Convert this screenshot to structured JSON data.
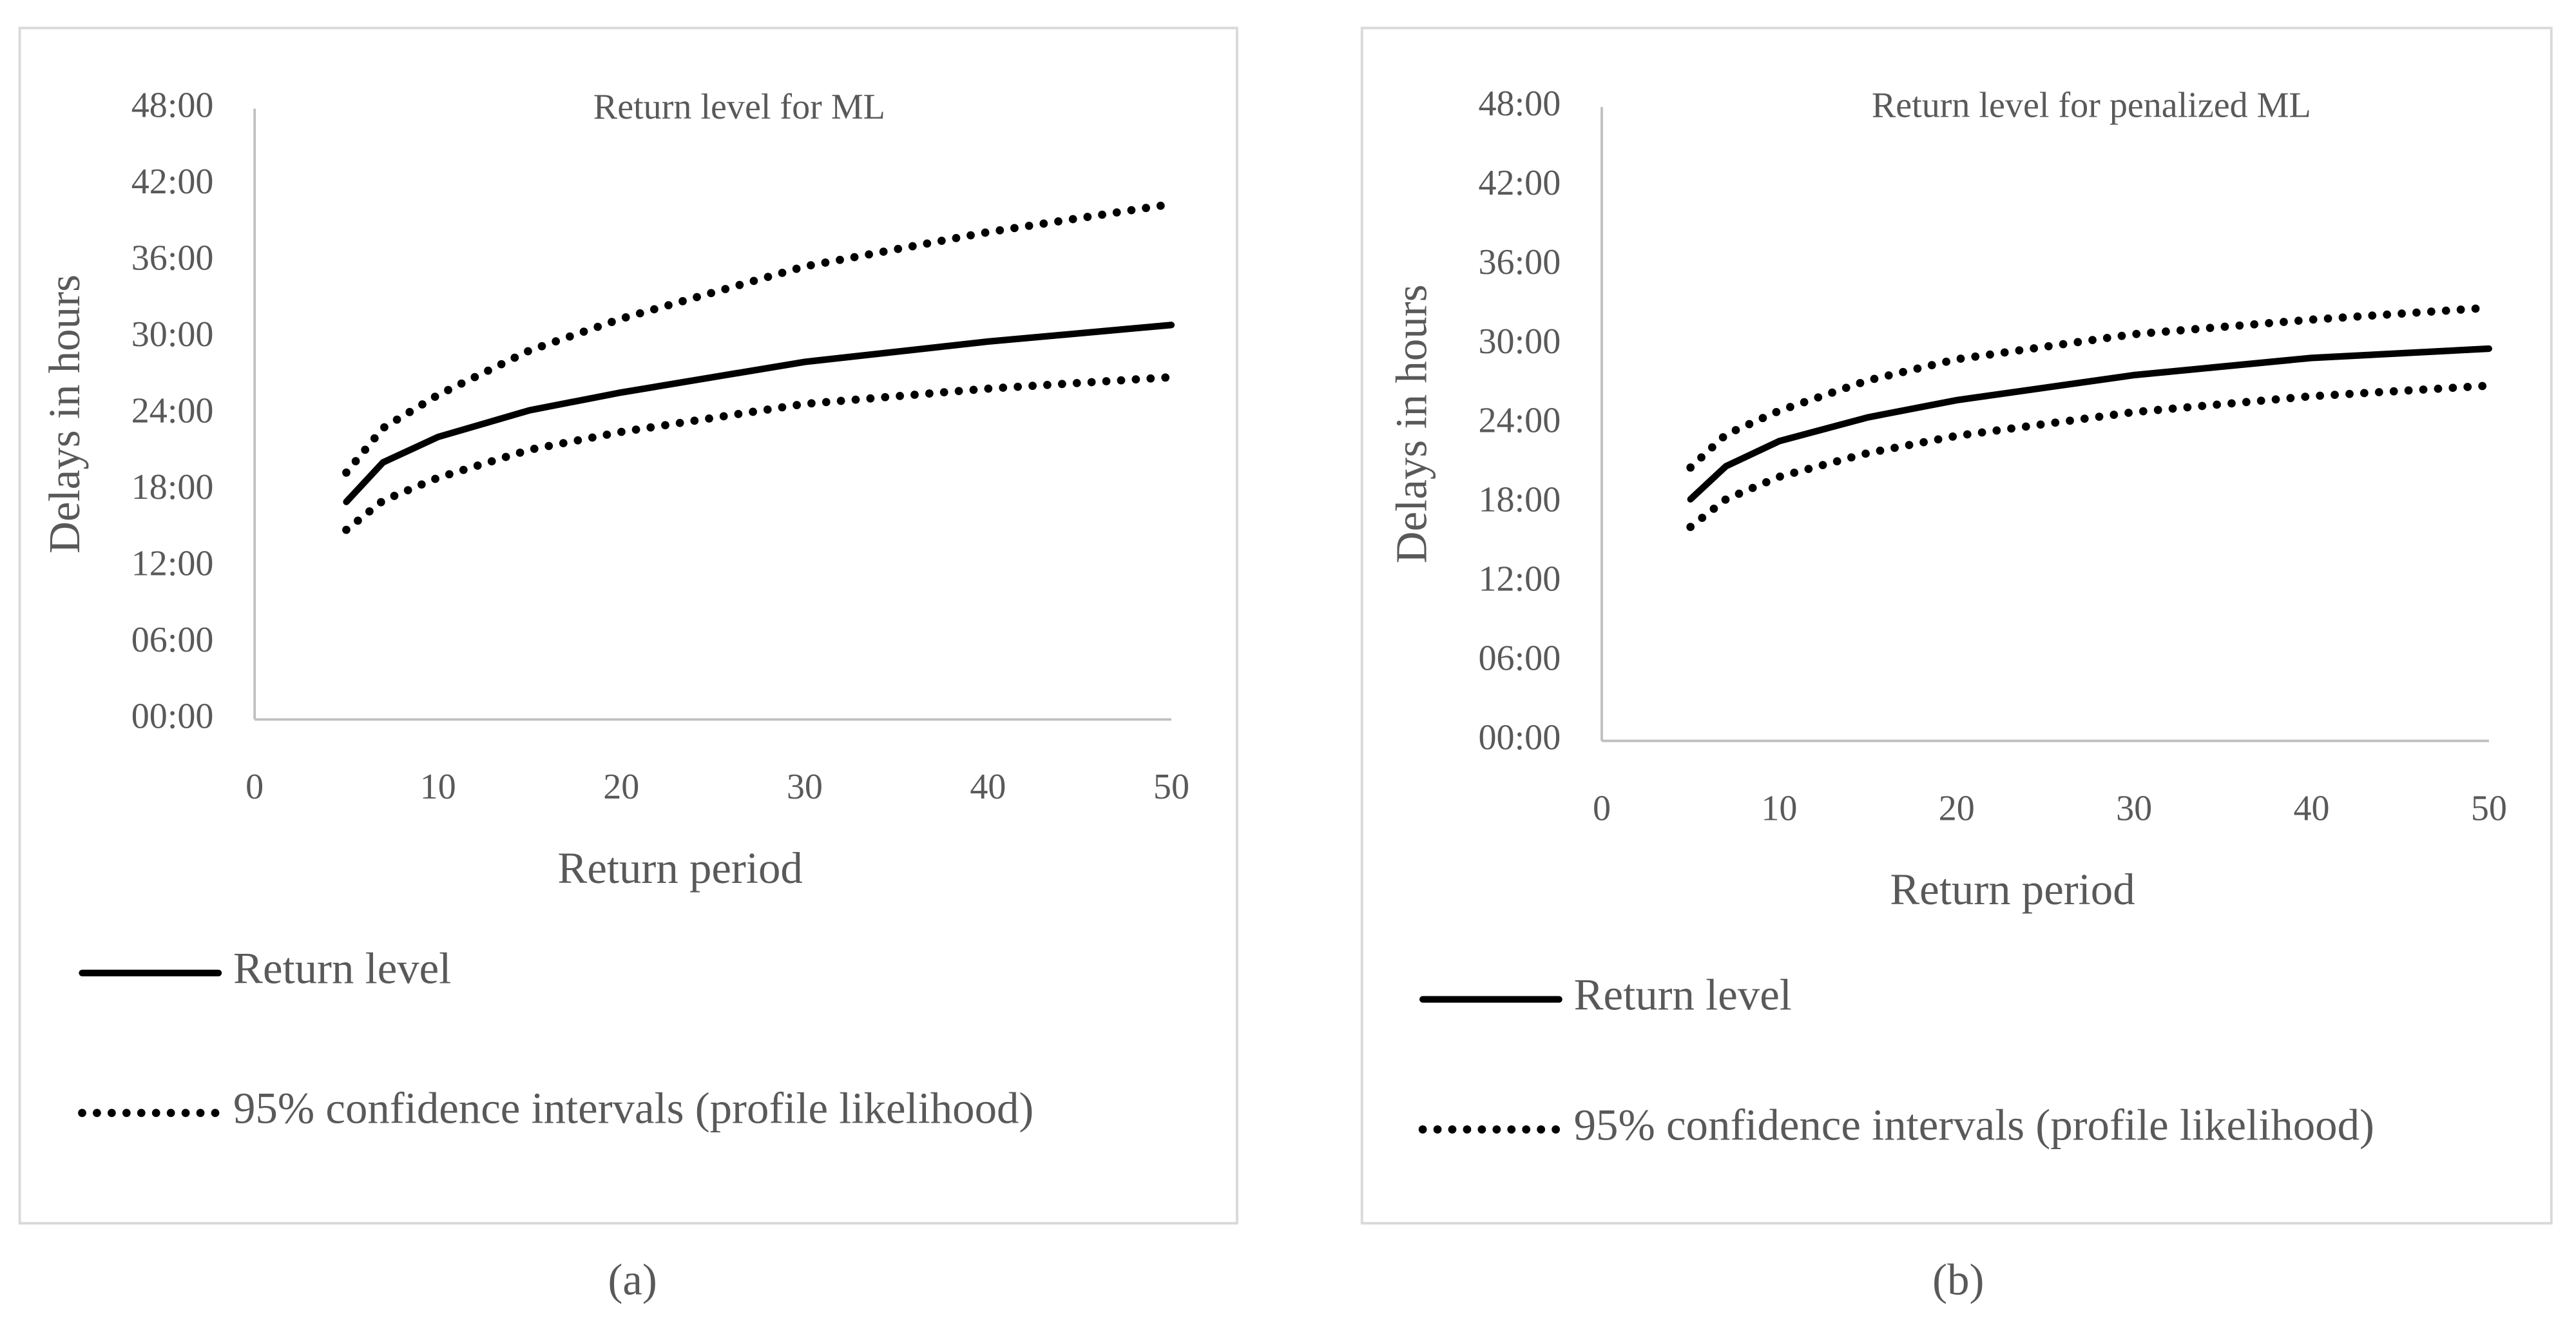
{
  "chart_data": [
    {
      "type": "line",
      "title": "Return level for ML",
      "x_label": "Return period",
      "y_label": "Delays in hours",
      "label": "(a)",
      "x": [
        5,
        7,
        10,
        15,
        20,
        30,
        40,
        50
      ],
      "series": [
        {
          "name": "Return level",
          "color": "#000000",
          "style": "solid",
          "values": [
            17.1,
            20.2,
            22.2,
            24.3,
            25.7,
            28.1,
            29.7,
            31.0
          ]
        },
        {
          "name": "95% confidence intervals (profile likelihood)",
          "color": "#000000",
          "style": "dotted",
          "values": [
            19.4,
            22.9,
            25.5,
            29.0,
            31.5,
            35.6,
            38.3,
            40.5
          ],
          "lower": [
            14.9,
            17.2,
            19.0,
            21.2,
            22.6,
            24.8,
            26.0,
            26.9
          ]
        }
      ],
      "xlim": [
        0,
        50
      ],
      "xticks": [
        0,
        10,
        20,
        30,
        40,
        50
      ],
      "ylim": [
        0,
        48
      ],
      "yticks": [
        {
          "value": 0,
          "label": "00:00"
        },
        {
          "value": 6,
          "label": "06:00"
        },
        {
          "value": 12,
          "label": "12:00"
        },
        {
          "value": 18,
          "label": "18:00"
        },
        {
          "value": 24,
          "label": "24:00"
        },
        {
          "value": 30,
          "label": "30:00"
        },
        {
          "value": 36,
          "label": "36:00"
        },
        {
          "value": 42,
          "label": "42:00"
        },
        {
          "value": 48,
          "label": "48:00"
        }
      ],
      "legend": "bottom"
    },
    {
      "type": "line",
      "title": "Return level for penalized ML",
      "x_label": "Return period",
      "y_label": "Delays in hours",
      "label": "(b)",
      "x": [
        5,
        7,
        10,
        15,
        20,
        30,
        40,
        50
      ],
      "series": [
        {
          "name": "Return level",
          "color": "#000000",
          "style": "solid",
          "values": [
            18.3,
            20.8,
            22.7,
            24.5,
            25.8,
            27.7,
            29.0,
            29.7
          ]
        },
        {
          "name": "95% confidence intervals (profile likelihood)",
          "color": "#000000",
          "style": "dotted",
          "values": [
            20.7,
            23.2,
            25.0,
            27.3,
            28.9,
            30.8,
            31.9,
            32.8
          ],
          "lower": [
            16.2,
            18.3,
            20.0,
            21.8,
            23.1,
            24.9,
            26.1,
            26.9
          ]
        }
      ],
      "xlim": [
        0,
        50
      ],
      "xticks": [
        0,
        10,
        20,
        30,
        40,
        50
      ],
      "ylim": [
        0,
        48
      ],
      "yticks": [
        {
          "value": 0,
          "label": "00:00"
        },
        {
          "value": 6,
          "label": "06:00"
        },
        {
          "value": 12,
          "label": "12:00"
        },
        {
          "value": 18,
          "label": "18:00"
        },
        {
          "value": 24,
          "label": "24:00"
        },
        {
          "value": 30,
          "label": "30:00"
        },
        {
          "value": 36,
          "label": "36:00"
        },
        {
          "value": 42,
          "label": "42:00"
        },
        {
          "value": 48,
          "label": "48:00"
        }
      ],
      "legend": "bottom"
    }
  ]
}
